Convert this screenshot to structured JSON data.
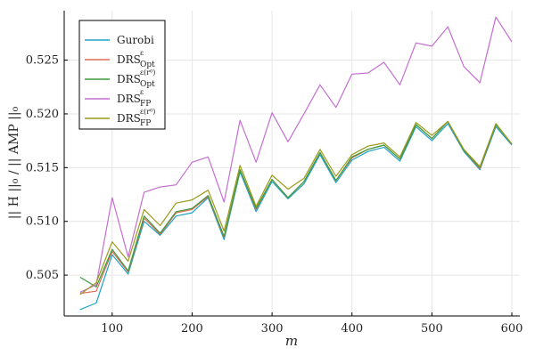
{
  "chart_data": {
    "type": "line",
    "xlabel": "m",
    "ylabel": "|| H ||₀ / || AMP ||₀",
    "xlim": [
      40,
      610
    ],
    "ylim": [
      0.5012,
      0.5296
    ],
    "xticks": [
      100,
      200,
      300,
      400,
      500,
      600
    ],
    "yticks": [
      0.505,
      0.51,
      0.515,
      0.52,
      0.525
    ],
    "ytick_labels": [
      "0.505",
      "0.510",
      "0.515",
      "0.520",
      "0.525"
    ],
    "grid": true,
    "legend_position": "top-left",
    "x": [
      60,
      80,
      100,
      120,
      140,
      160,
      180,
      200,
      220,
      240,
      260,
      280,
      300,
      320,
      340,
      360,
      380,
      400,
      420,
      440,
      460,
      480,
      500,
      520,
      540,
      560,
      580,
      600
    ],
    "series": [
      {
        "name": "Gurobi",
        "legend_base": "Gurobi",
        "legend_sup": "",
        "legend_sub": "",
        "color": "#1fa3c6",
        "values": [
          0.5018,
          0.5024,
          0.5069,
          0.5051,
          0.51,
          0.5087,
          0.5105,
          0.5108,
          0.5122,
          0.5083,
          0.5146,
          0.5109,
          0.5137,
          0.5121,
          0.5135,
          0.5162,
          0.5136,
          0.5157,
          0.5165,
          0.5169,
          0.5156,
          0.5188,
          0.5175,
          0.5191,
          0.5165,
          0.5148,
          0.5188,
          0.5171
        ]
      },
      {
        "name": "DRS Opt ε",
        "legend_base": "DRS",
        "legend_sup": "ε",
        "legend_sub": "Opt",
        "color": "#e06c55",
        "values": [
          0.5033,
          0.5035,
          0.5072,
          0.5053,
          0.5103,
          0.5088,
          0.5108,
          0.5111,
          0.5123,
          0.5085,
          0.5148,
          0.5111,
          0.5139,
          0.5122,
          0.5137,
          0.5164,
          0.5138,
          0.5159,
          0.5167,
          0.5171,
          0.5158,
          0.519,
          0.5177,
          0.5193,
          0.5166,
          0.5149,
          0.519,
          0.5172
        ]
      },
      {
        "name": "DRS Opt ε(r⁰)",
        "legend_base": "DRS",
        "legend_sup": "ε(r⁰)",
        "legend_sub": "Opt",
        "color": "#3d9a3d",
        "values": [
          0.5048,
          0.5039,
          0.5074,
          0.5054,
          0.5105,
          0.5089,
          0.5109,
          0.5112,
          0.5124,
          0.5086,
          0.5148,
          0.5112,
          0.5139,
          0.5122,
          0.5137,
          0.5164,
          0.5138,
          0.516,
          0.5167,
          0.5171,
          0.5158,
          0.519,
          0.5177,
          0.5193,
          0.5166,
          0.515,
          0.519,
          0.5172
        ]
      },
      {
        "name": "DRS FP ε",
        "legend_base": "DRS",
        "legend_sup": "ε",
        "legend_sub": "FP",
        "color": "#c46fd0",
        "values": [
          0.5034,
          0.5041,
          0.5122,
          0.5067,
          0.5127,
          0.5132,
          0.5134,
          0.5155,
          0.516,
          0.5118,
          0.5194,
          0.5155,
          0.5201,
          0.5174,
          0.52,
          0.5227,
          0.5206,
          0.5237,
          0.5238,
          0.5248,
          0.5227,
          0.5266,
          0.5263,
          0.5281,
          0.5244,
          0.5229,
          0.529,
          0.5267
        ]
      },
      {
        "name": "DRS FP ε(r⁰)",
        "legend_base": "DRS",
        "legend_sup": "ε(r⁰)",
        "legend_sub": "FP",
        "color": "#9a9a1a",
        "values": [
          0.5032,
          0.5043,
          0.5081,
          0.5063,
          0.5111,
          0.5096,
          0.5117,
          0.512,
          0.5129,
          0.5091,
          0.5152,
          0.5114,
          0.5143,
          0.513,
          0.514,
          0.5167,
          0.5142,
          0.5162,
          0.517,
          0.5173,
          0.516,
          0.5192,
          0.518,
          0.5193,
          0.5167,
          0.5151,
          0.5191,
          0.5172
        ]
      }
    ]
  }
}
